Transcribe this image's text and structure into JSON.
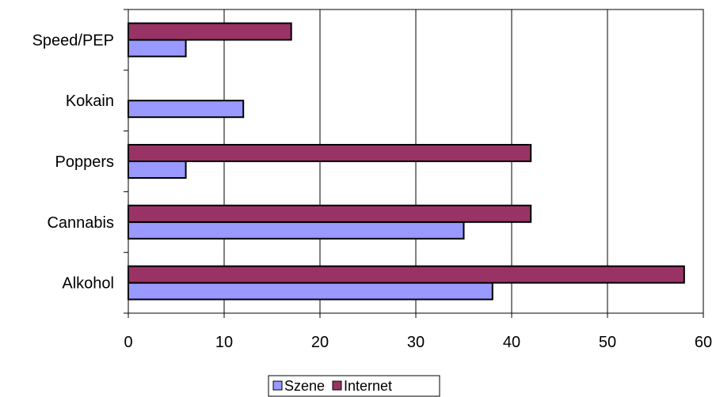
{
  "chart_data": {
    "type": "bar",
    "orientation": "horizontal",
    "categories": [
      "Speed/PEP",
      "Kokain",
      "Poppers",
      "Cannabis",
      "Alkohol"
    ],
    "series": [
      {
        "name": "Szene",
        "color": "#9999ff",
        "values": [
          6,
          12,
          6,
          35,
          38
        ]
      },
      {
        "name": "Internet",
        "color": "#993366",
        "values": [
          17,
          null,
          42,
          42,
          58
        ]
      }
    ],
    "xlim": [
      0,
      60
    ],
    "xticks": [
      0,
      10,
      20,
      30,
      40,
      50,
      60
    ],
    "grid": "vertical",
    "legend": "bottom"
  }
}
